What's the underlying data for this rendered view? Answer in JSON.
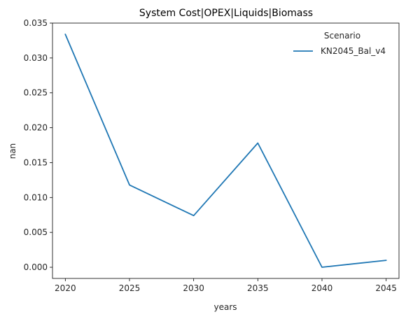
{
  "chart_data": {
    "type": "line",
    "title": "System Cost|OPEX|Liquids|Biomass",
    "xlabel": "years",
    "ylabel": "nan",
    "x": [
      2020,
      2025,
      2030,
      2035,
      2040,
      2045
    ],
    "xticks": [
      "2020",
      "2025",
      "2030",
      "2035",
      "2040",
      "2045"
    ],
    "yticks": [
      "0.000",
      "0.005",
      "0.010",
      "0.015",
      "0.020",
      "0.025",
      "0.030",
      "0.035"
    ],
    "ylim": [
      -0.0016,
      0.035
    ],
    "series": [
      {
        "name": "KN2045_Bal_v4",
        "color": "#1f77b4",
        "values": [
          0.0334,
          0.0118,
          0.0074,
          0.0178,
          0.0,
          0.001
        ]
      }
    ],
    "legend": {
      "title": "Scenario",
      "placement": "top-right"
    },
    "grid": false
  }
}
